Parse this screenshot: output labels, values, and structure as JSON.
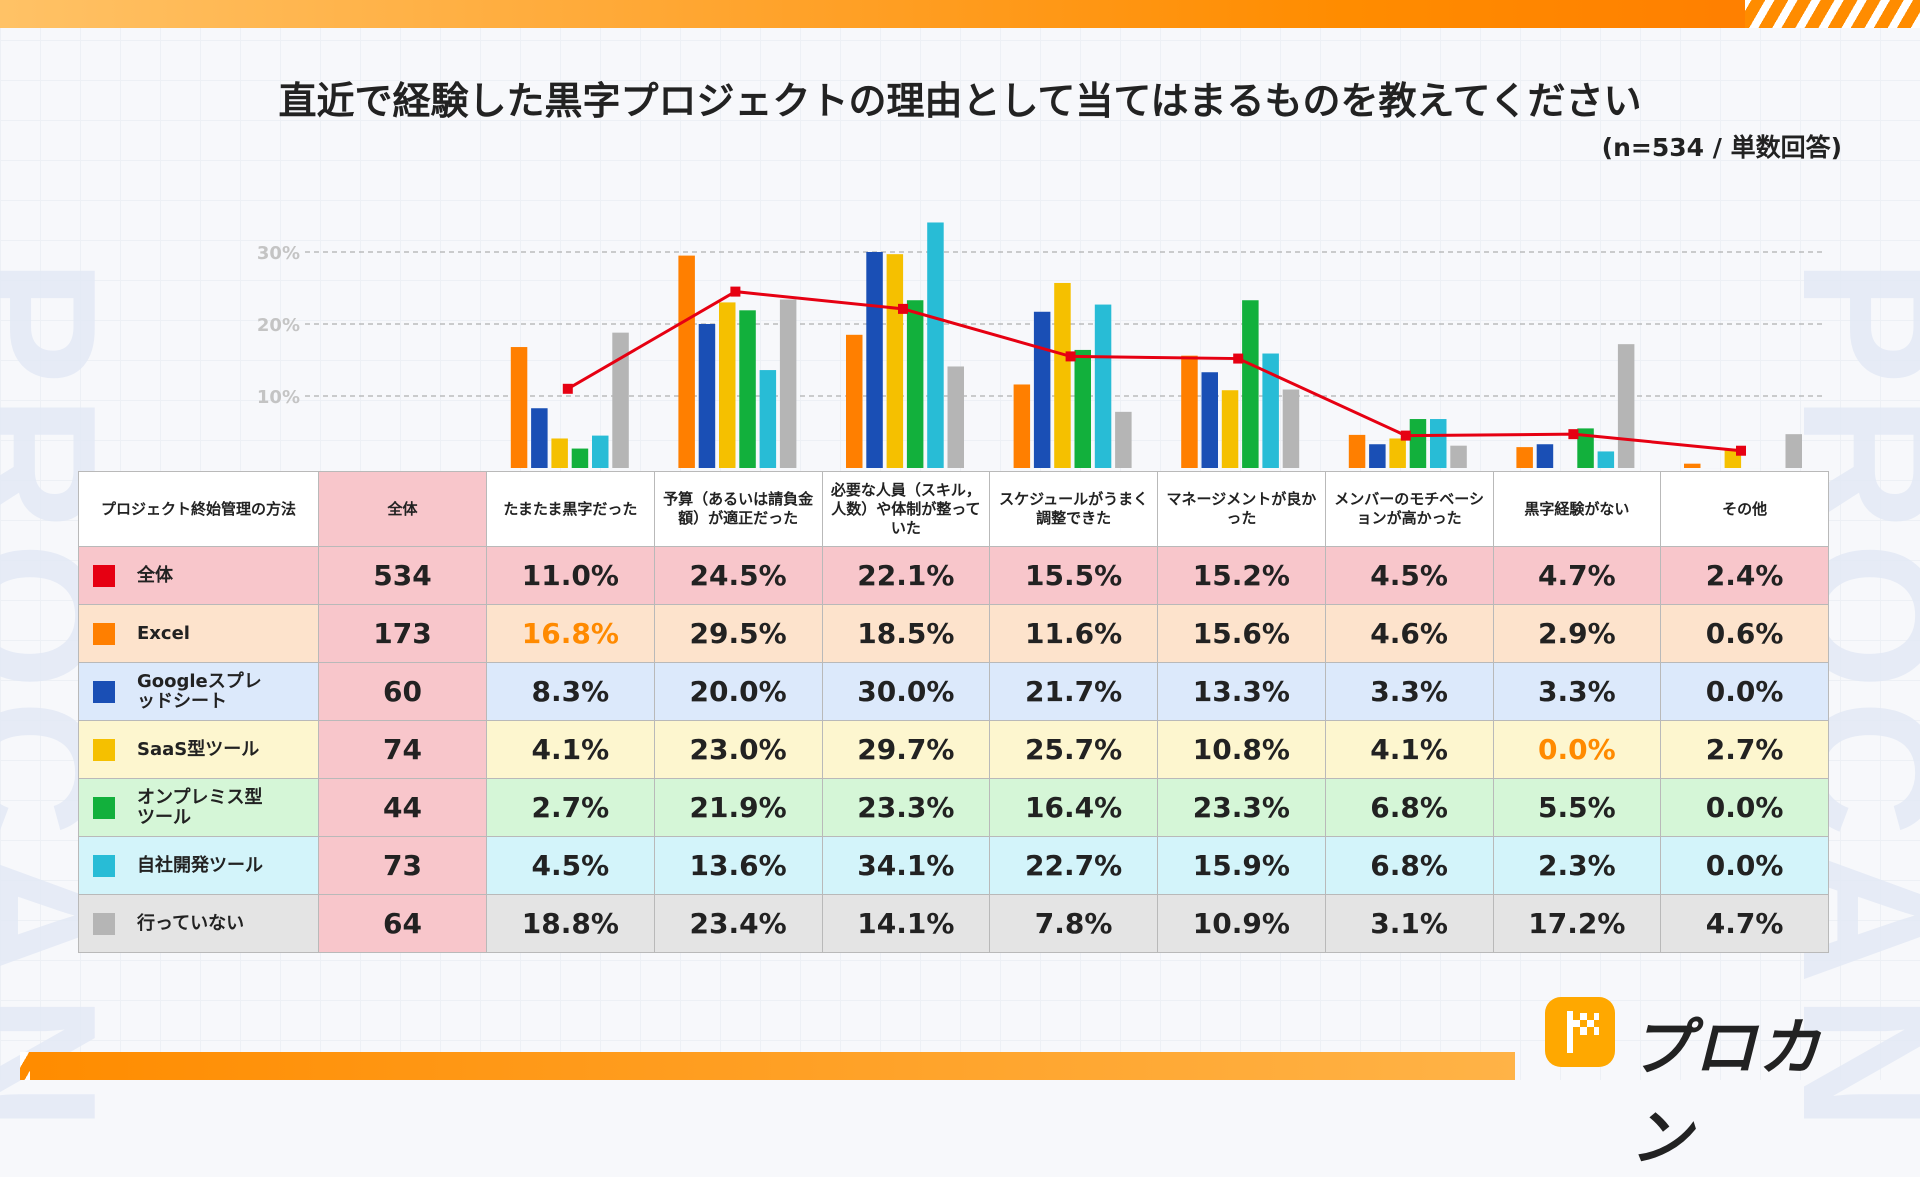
{
  "title": "直近で経験した黒字プロジェクトの理由として当てはまるものを教えてください",
  "subtitle": "(n=534 / 単数回答)",
  "watermark": "PROCAN",
  "logo_text": "プロカン",
  "colors": {
    "total": "#e60012",
    "excel": "#ff7f00",
    "google": "#1a4fb5",
    "saas": "#f5c000",
    "onprem": "#12b03c",
    "inhouse": "#28bcd6",
    "none": "#b5b5b5",
    "highlight": "#ff8a00"
  },
  "table": {
    "corner_header": "プロジェクト終始管理の方法",
    "total_header": "全体",
    "column_headers": [
      "たまたま黒字だった",
      "予算（あるいは請負金額）が適正だった",
      "必要な人員（スキル，人数）や体制が整っていた",
      "スケジュールがうまく調整できた",
      "マネージメントが良かった",
      "メンバーのモチベーションが高かった",
      "黒字経験がない",
      "その他"
    ],
    "rows": [
      {
        "key": "total",
        "label": "全体",
        "n": "534",
        "values": [
          "11.0%",
          "24.5%",
          "22.1%",
          "15.5%",
          "15.2%",
          "4.5%",
          "4.7%",
          "2.4%"
        ],
        "bg": "#f8c6cb",
        "color": "#e60012"
      },
      {
        "key": "excel",
        "label": "Excel",
        "n": "173",
        "values": [
          "16.8%",
          "29.5%",
          "18.5%",
          "11.6%",
          "15.6%",
          "4.6%",
          "2.9%",
          "0.6%"
        ],
        "bg": "#fde3cc",
        "color": "#ff7f00"
      },
      {
        "key": "google",
        "label": "Googleスプレッドシート",
        "n": "60",
        "values": [
          "8.3%",
          "20.0%",
          "30.0%",
          "21.7%",
          "13.3%",
          "3.3%",
          "3.3%",
          "0.0%"
        ],
        "bg": "#dce9fb",
        "color": "#1a4fb5"
      },
      {
        "key": "saas",
        "label": "SaaS型ツール",
        "n": "74",
        "values": [
          "4.1%",
          "23.0%",
          "29.7%",
          "25.7%",
          "10.8%",
          "4.1%",
          "0.0%",
          "2.7%"
        ],
        "bg": "#fdf6cf",
        "color": "#f5c000"
      },
      {
        "key": "onprem",
        "label": "オンプレミス型ツール",
        "n": "44",
        "values": [
          "2.7%",
          "21.9%",
          "23.3%",
          "16.4%",
          "23.3%",
          "6.8%",
          "5.5%",
          "0.0%"
        ],
        "bg": "#d5f6d7",
        "color": "#12b03c"
      },
      {
        "key": "inhouse",
        "label": "自社開発ツール",
        "n": "73",
        "values": [
          "4.5%",
          "13.6%",
          "34.1%",
          "22.7%",
          "15.9%",
          "6.8%",
          "2.3%",
          "0.0%"
        ],
        "bg": "#d3f4fa",
        "color": "#28bcd6"
      },
      {
        "key": "none",
        "label": "行っていない",
        "n": "64",
        "values": [
          "18.8%",
          "23.4%",
          "14.1%",
          "7.8%",
          "10.9%",
          "3.1%",
          "17.2%",
          "4.7%"
        ],
        "bg": "#e4e4e4",
        "color": "#b5b5b5"
      }
    ],
    "highlighted_cells": [
      {
        "row": 1,
        "col": 0
      },
      {
        "row": 3,
        "col": 6
      }
    ]
  },
  "chart_data": {
    "type": "bar",
    "title": "直近で経験した黒字プロジェクトの理由として当てはまるものを教えてください",
    "xlabel": "",
    "ylabel": "",
    "ylim": [
      0,
      30
    ],
    "yticks": [
      "10%",
      "20%",
      "30%"
    ],
    "grid": true,
    "categories": [
      "たまたま黒字だった",
      "予算（あるいは請負金額）が適正だった",
      "必要な人員（スキル，人数）や体制が整っていた",
      "スケジュールがうまく調整できた",
      "マネージメントが良かった",
      "メンバーのモチベーションが高かった",
      "黒字経験がない",
      "その他"
    ],
    "series": [
      {
        "name": "Excel",
        "type": "bar",
        "color": "#ff7f00",
        "values": [
          16.8,
          29.5,
          18.5,
          11.6,
          15.6,
          4.6,
          2.9,
          0.6
        ]
      },
      {
        "name": "Googleスプレッドシート",
        "type": "bar",
        "color": "#1a4fb5",
        "values": [
          8.3,
          20.0,
          30.0,
          21.7,
          13.3,
          3.3,
          3.3,
          0.0
        ]
      },
      {
        "name": "SaaS型ツール",
        "type": "bar",
        "color": "#f5c000",
        "values": [
          4.1,
          23.0,
          29.7,
          25.7,
          10.8,
          4.1,
          0.0,
          2.7
        ]
      },
      {
        "name": "オンプレミス型ツール",
        "type": "bar",
        "color": "#12b03c",
        "values": [
          2.7,
          21.9,
          23.3,
          16.4,
          23.3,
          6.8,
          5.5,
          0.0
        ]
      },
      {
        "name": "自社開発ツール",
        "type": "bar",
        "color": "#28bcd6",
        "values": [
          4.5,
          13.6,
          34.1,
          22.7,
          15.9,
          6.8,
          2.3,
          0.0
        ]
      },
      {
        "name": "行っていない",
        "type": "bar",
        "color": "#b5b5b5",
        "values": [
          18.8,
          23.4,
          14.1,
          7.8,
          10.9,
          3.1,
          17.2,
          4.7
        ]
      },
      {
        "name": "全体",
        "type": "line",
        "color": "#e60012",
        "values": [
          11.0,
          24.5,
          22.1,
          15.5,
          15.2,
          4.5,
          4.7,
          2.4
        ]
      }
    ]
  }
}
